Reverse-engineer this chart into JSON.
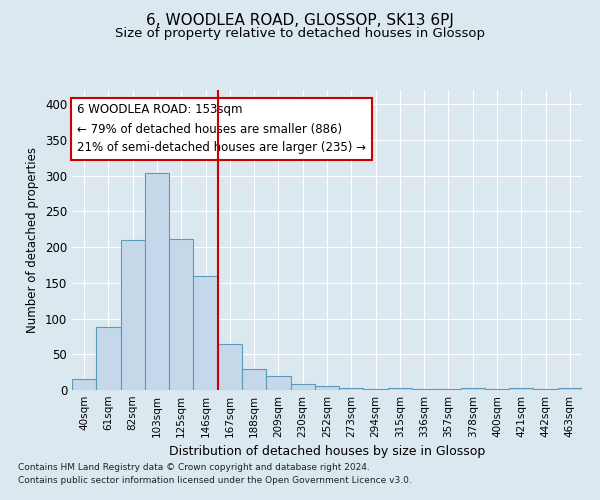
{
  "title": "6, WOODLEA ROAD, GLOSSOP, SK13 6PJ",
  "subtitle": "Size of property relative to detached houses in Glossop",
  "xlabel": "Distribution of detached houses by size in Glossop",
  "ylabel": "Number of detached properties",
  "bar_color": "#c5d8ea",
  "bar_edge_color": "#5b9abd",
  "background_color": "#dce8f0",
  "grid_color": "#ffffff",
  "redline_color": "#cc0000",
  "annotation_line1": "6 WOODLEA ROAD: 153sqm",
  "annotation_line2": "← 79% of detached houses are smaller (886)",
  "annotation_line3": "21% of semi-detached houses are larger (235) →",
  "annotation_box_color": "#ffffff",
  "annotation_box_edge": "#cc0000",
  "footer1": "Contains HM Land Registry data © Crown copyright and database right 2024.",
  "footer2": "Contains public sector information licensed under the Open Government Licence v3.0.",
  "categories": [
    "40sqm",
    "61sqm",
    "82sqm",
    "103sqm",
    "125sqm",
    "146sqm",
    "167sqm",
    "188sqm",
    "209sqm",
    "230sqm",
    "252sqm",
    "273sqm",
    "294sqm",
    "315sqm",
    "336sqm",
    "357sqm",
    "378sqm",
    "400sqm",
    "421sqm",
    "442sqm",
    "463sqm"
  ],
  "values": [
    16,
    88,
    210,
    304,
    212,
    160,
    64,
    30,
    19,
    9,
    5,
    3,
    1,
    3,
    2,
    2,
    3,
    2,
    3,
    1,
    3
  ],
  "redline_x": 5.5,
  "ylim": [
    0,
    420
  ],
  "yticks": [
    0,
    50,
    100,
    150,
    200,
    250,
    300,
    350,
    400
  ]
}
